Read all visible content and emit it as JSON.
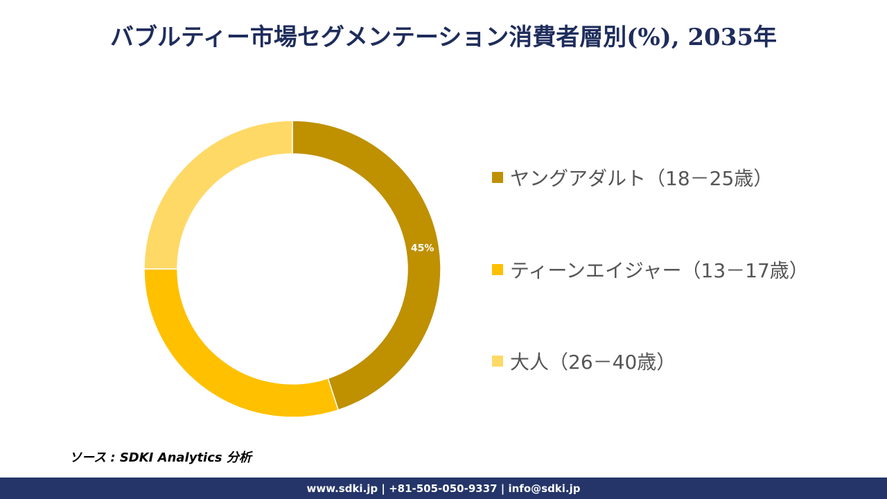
{
  "title": "バブルティー市場セグメンテーション消費者層別(%), 2035年",
  "chart_data": {
    "type": "pie",
    "categories": [
      "ヤングアダルト（18－25歳）",
      "ティーンエイジャー（13－17歳）",
      "大人（26－40歳）"
    ],
    "values": [
      45,
      30,
      25
    ],
    "data_labels": [
      "45%",
      "",
      ""
    ],
    "colors": [
      "#bf9000",
      "#ffc000",
      "#ffd966"
    ],
    "legend_position": "right"
  },
  "source": "ソース : SDKI Analytics 分析",
  "footer": "www.sdki.jp | +81-505-050-9337 | info@sdki.jp"
}
